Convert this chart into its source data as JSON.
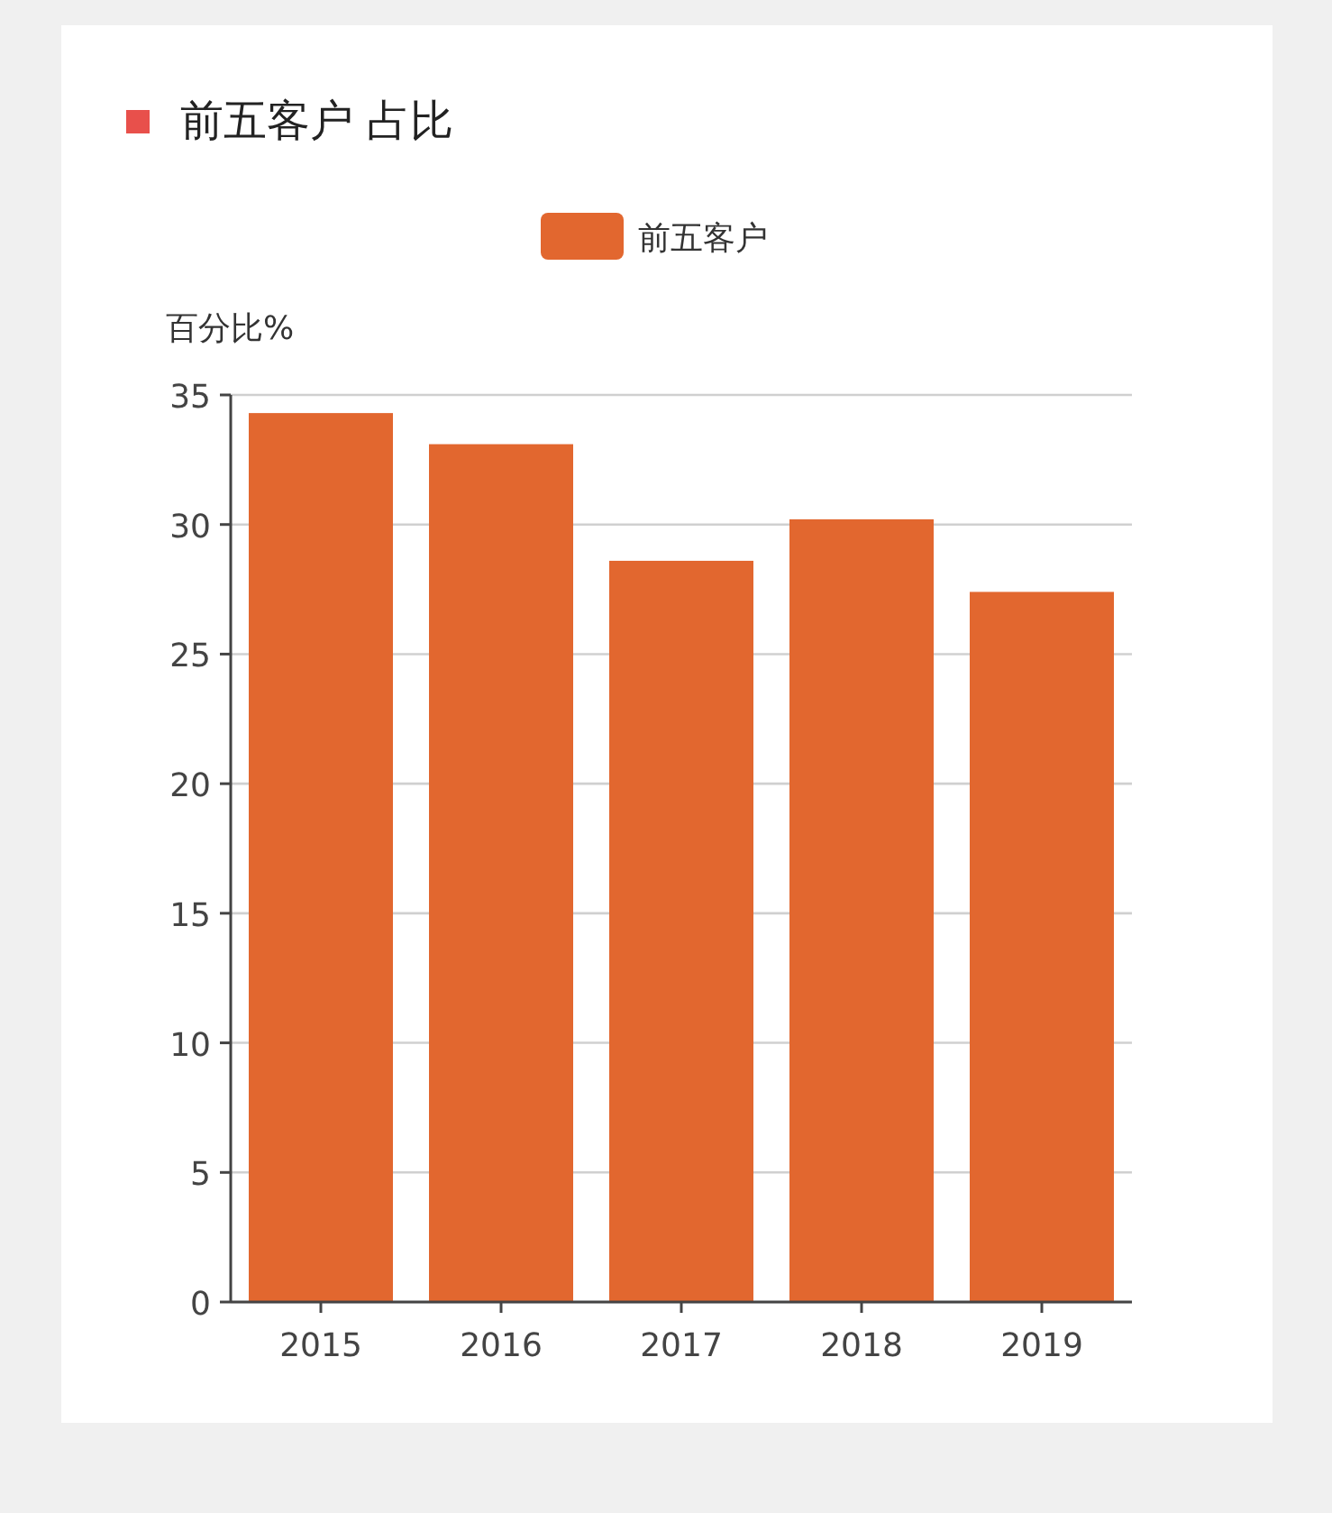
{
  "chart_data": {
    "type": "bar",
    "title": "前五客户 占比",
    "ylabel": "百分比%",
    "categories": [
      "2015",
      "2016",
      "2017",
      "2018",
      "2019"
    ],
    "series": [
      {
        "name": "前五客户",
        "color": "#e2672f",
        "values": [
          34.3,
          33.1,
          28.6,
          30.2,
          27.4
        ]
      }
    ],
    "ylim": [
      0,
      35
    ],
    "yticks": [
      0,
      5,
      10,
      15,
      20,
      25,
      30,
      35
    ],
    "grid": "y",
    "legend": "top"
  }
}
